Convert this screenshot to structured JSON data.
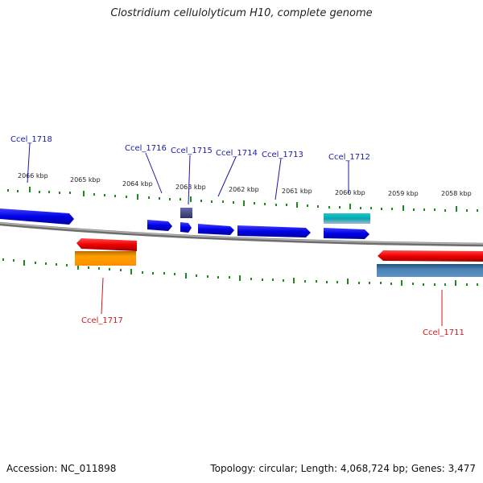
{
  "title": "Clostridium cellulolyticum H10, complete genome",
  "footer": {
    "accession": "Accession: NC_011898",
    "topology": "Topology: circular; Length: 4,068,724 bp; Genes: 3,477"
  },
  "colors": {
    "forward_gene": "#0a0ae8",
    "reverse_gene": "#e80000",
    "backbone": "#8a8a8a",
    "forward_label": "#1a1aa8",
    "reverse_label": "#cc1a1a",
    "tick": "#1e8a1e"
  },
  "scale": {
    "unit": "kbp",
    "labels": [
      "2066 kbp",
      "2065 kbp",
      "2064 kbp",
      "2063 kbp",
      "2062 kbp",
      "2061 kbp",
      "2060 kbp",
      "2059 kbp",
      "2058 kbp"
    ]
  },
  "gene_labels": [
    "Ccel_1718",
    "Ccel_1716",
    "Ccel_1715",
    "Ccel_1714",
    "Ccel_1713",
    "Ccel_1712",
    "Ccel_1717",
    "Ccel_1711"
  ]
}
